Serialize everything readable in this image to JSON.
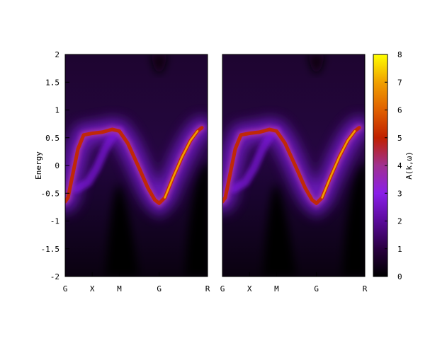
{
  "chart_data": {
    "type": "heatmap",
    "title": "",
    "ylabel": "Energy",
    "ylim": [
      -2,
      2
    ],
    "yticks": [
      {
        "value": 2,
        "label": "2"
      },
      {
        "value": 1.5,
        "label": "1.5"
      },
      {
        "value": 1,
        "label": "1"
      },
      {
        "value": 0.5,
        "label": "0.5"
      },
      {
        "value": 0,
        "label": "0"
      },
      {
        "value": -0.5,
        "label": "-0.5"
      },
      {
        "value": -1,
        "label": "-1"
      },
      {
        "value": -1.5,
        "label": "-1.5"
      },
      {
        "value": -2,
        "label": "-2"
      }
    ],
    "panels": [
      {
        "name": "left",
        "xticks": [
          {
            "k": 0.0,
            "label": "G"
          },
          {
            "k": 0.19,
            "label": "X"
          },
          {
            "k": 0.38,
            "label": "M"
          },
          {
            "k": 0.66,
            "label": "G"
          },
          {
            "k": 1.0,
            "label": "R"
          }
        ],
        "main_band": [
          {
            "k": 0.0,
            "e": -0.65
          },
          {
            "k": 0.02,
            "e": -0.58
          },
          {
            "k": 0.05,
            "e": -0.2
          },
          {
            "k": 0.09,
            "e": 0.3
          },
          {
            "k": 0.13,
            "e": 0.55
          },
          {
            "k": 0.19,
            "e": 0.58
          },
          {
            "k": 0.26,
            "e": 0.6
          },
          {
            "k": 0.33,
            "e": 0.65
          },
          {
            "k": 0.38,
            "e": 0.62
          },
          {
            "k": 0.44,
            "e": 0.4
          },
          {
            "k": 0.52,
            "e": -0.05
          },
          {
            "k": 0.58,
            "e": -0.4
          },
          {
            "k": 0.63,
            "e": -0.62
          },
          {
            "k": 0.66,
            "e": -0.68
          },
          {
            "k": 0.7,
            "e": -0.58
          },
          {
            "k": 0.76,
            "e": -0.2
          },
          {
            "k": 0.82,
            "e": 0.15
          },
          {
            "k": 0.88,
            "e": 0.45
          },
          {
            "k": 0.93,
            "e": 0.62
          },
          {
            "k": 0.96,
            "e": 0.68
          }
        ],
        "second_band": [
          {
            "k": 0.08,
            "e": -0.42
          },
          {
            "k": 0.16,
            "e": -0.3
          },
          {
            "k": 0.22,
            "e": -0.05
          },
          {
            "k": 0.28,
            "e": 0.3
          },
          {
            "k": 0.33,
            "e": 0.52
          },
          {
            "k": 0.38,
            "e": 0.62
          }
        ]
      },
      {
        "name": "right",
        "xticks": [
          {
            "k": 0.0,
            "label": "G"
          },
          {
            "k": 0.19,
            "label": "X"
          },
          {
            "k": 0.38,
            "label": "M"
          },
          {
            "k": 0.66,
            "label": "G"
          },
          {
            "k": 1.0,
            "label": "R"
          }
        ],
        "main_band": [
          {
            "k": 0.0,
            "e": -0.65
          },
          {
            "k": 0.02,
            "e": -0.58
          },
          {
            "k": 0.05,
            "e": -0.2
          },
          {
            "k": 0.09,
            "e": 0.3
          },
          {
            "k": 0.13,
            "e": 0.55
          },
          {
            "k": 0.19,
            "e": 0.58
          },
          {
            "k": 0.26,
            "e": 0.6
          },
          {
            "k": 0.33,
            "e": 0.65
          },
          {
            "k": 0.38,
            "e": 0.62
          },
          {
            "k": 0.44,
            "e": 0.4
          },
          {
            "k": 0.52,
            "e": -0.05
          },
          {
            "k": 0.58,
            "e": -0.4
          },
          {
            "k": 0.63,
            "e": -0.62
          },
          {
            "k": 0.66,
            "e": -0.68
          },
          {
            "k": 0.7,
            "e": -0.58
          },
          {
            "k": 0.76,
            "e": -0.2
          },
          {
            "k": 0.82,
            "e": 0.15
          },
          {
            "k": 0.88,
            "e": 0.45
          },
          {
            "k": 0.93,
            "e": 0.62
          },
          {
            "k": 0.96,
            "e": 0.68
          }
        ],
        "second_band": [
          {
            "k": 0.08,
            "e": -0.42
          },
          {
            "k": 0.16,
            "e": -0.3
          },
          {
            "k": 0.22,
            "e": -0.05
          },
          {
            "k": 0.28,
            "e": 0.3
          },
          {
            "k": 0.33,
            "e": 0.52
          },
          {
            "k": 0.38,
            "e": 0.62
          }
        ]
      }
    ],
    "colorbar": {
      "label": "A(k,ω)",
      "range": [
        0,
        8
      ],
      "ticks": [
        {
          "value": 0,
          "label": "0"
        },
        {
          "value": 1,
          "label": "1"
        },
        {
          "value": 2,
          "label": "2"
        },
        {
          "value": 3,
          "label": "3"
        },
        {
          "value": 4,
          "label": "4"
        },
        {
          "value": 5,
          "label": "5"
        },
        {
          "value": 6,
          "label": "6"
        },
        {
          "value": 7,
          "label": "7"
        },
        {
          "value": 8,
          "label": "8"
        }
      ],
      "colors": [
        "#000000",
        "#2a0040",
        "#5a0a9a",
        "#8a1ee8",
        "#a03090",
        "#c02000",
        "#e06000",
        "#f0a000",
        "#ffff00"
      ]
    }
  }
}
